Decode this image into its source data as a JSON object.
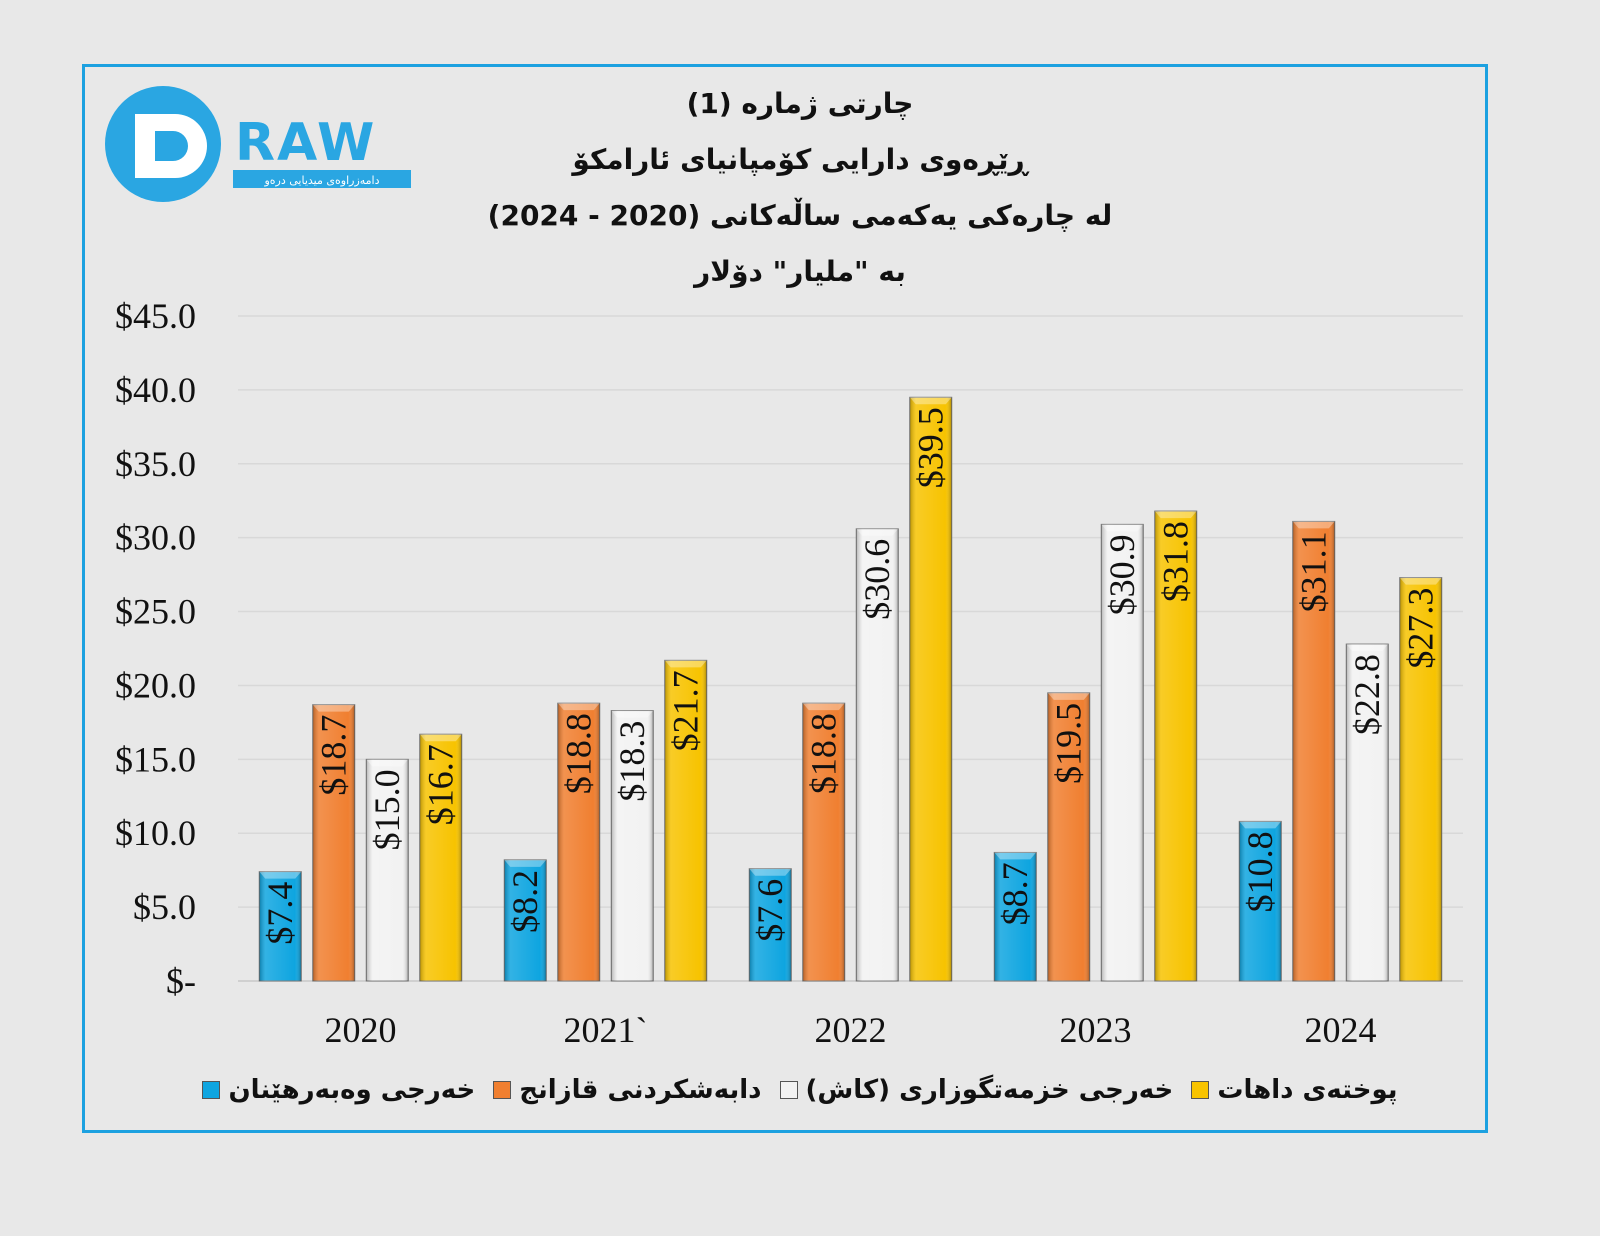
{
  "logo": {
    "text": "DRAW",
    "subtitle": "دامەزراوەی میدیایی درەو"
  },
  "chart_data": {
    "type": "bar",
    "title_lines": [
      "چارتی ژمارە (1)",
      "ڕێڕەوی دارایی کۆمپانیای ئارامکۆ",
      "لە چارەکی یەکەمی ساڵەکانی (2020 - 2024)",
      "بە \"ملیار\" دۆلار"
    ],
    "categories": [
      "2020",
      "2021`",
      "2022",
      "2023",
      "2024"
    ],
    "series": [
      {
        "name": "خەرجی وەبەرهێنان",
        "color": "#0ea5e0",
        "values": [
          7.4,
          8.2,
          7.6,
          8.7,
          10.8
        ],
        "labels": [
          "$7.4",
          "$8.2",
          "$7.6",
          "$8.7",
          "$10.8"
        ]
      },
      {
        "name": "دابەشکردنی قازانج",
        "color": "#f07f30",
        "values": [
          18.7,
          18.8,
          18.8,
          19.5,
          31.1
        ],
        "labels": [
          "$18.7",
          "$18.8",
          "$18.8",
          "$19.5",
          "$31.1"
        ]
      },
      {
        "name": "خەرجی خزمەتگوزاری (کاش)",
        "color": "#f2f2f2",
        "values": [
          15.0,
          18.3,
          30.6,
          30.9,
          22.8
        ],
        "labels": [
          "$15.0",
          "$18.3",
          "$30.6",
          "$30.9",
          "$22.8"
        ]
      },
      {
        "name": "پوختەی داهات",
        "color": "#f7c300",
        "values": [
          16.7,
          21.7,
          39.5,
          31.8,
          27.3
        ],
        "labels": [
          "$16.7",
          "$21.7",
          "$39.5",
          "$31.8",
          "$27.3"
        ]
      }
    ],
    "ylim": [
      0,
      45
    ],
    "yticks": [
      0,
      5,
      10,
      15,
      20,
      25,
      30,
      35,
      40,
      45
    ],
    "ytick_labels": [
      "$-",
      "$5.0",
      "$10.0",
      "$15.0",
      "$20.0",
      "$25.0",
      "$30.0",
      "$35.0",
      "$40.0",
      "$45.0"
    ],
    "grid": true,
    "legend_position": "bottom",
    "xlabel": "",
    "ylabel": ""
  },
  "colors": {
    "frame": "#1da1e0",
    "background": "#e8e8e8"
  }
}
